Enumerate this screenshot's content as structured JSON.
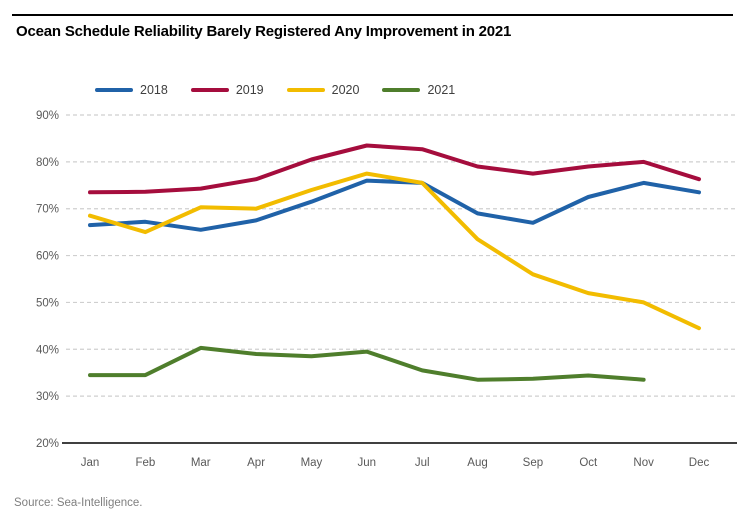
{
  "title": "Ocean Schedule Reliability Barely Registered Any Improvement in 2021",
  "source": "Source: Sea-Intelligence.",
  "chart_data": {
    "type": "line",
    "title": "Ocean Schedule Reliability Barely Registered Any Improvement in 2021",
    "categories": [
      "Jan",
      "Feb",
      "Mar",
      "Apr",
      "May",
      "Jun",
      "Jul",
      "Aug",
      "Sep",
      "Oct",
      "Nov",
      "Dec"
    ],
    "series": [
      {
        "name": "2018",
        "color": "#2062A8",
        "values": [
          66.5,
          67.2,
          65.5,
          67.5,
          71.5,
          76.0,
          75.5,
          69.0,
          67.0,
          72.5,
          75.5,
          73.5
        ]
      },
      {
        "name": "2019",
        "color": "#A50D3D",
        "values": [
          73.5,
          73.6,
          74.3,
          76.3,
          80.5,
          83.5,
          82.7,
          79.0,
          77.5,
          79.0,
          80.0,
          76.3
        ]
      },
      {
        "name": "2020",
        "color": "#F2BC00",
        "values": [
          68.5,
          65.0,
          70.3,
          70.0,
          74.0,
          77.5,
          75.5,
          63.5,
          56.0,
          52.0,
          50.0,
          44.5
        ]
      },
      {
        "name": "2021",
        "color": "#4F7E2C",
        "values": [
          34.5,
          34.5,
          40.3,
          39.0,
          38.5,
          39.5,
          35.5,
          33.5,
          33.7,
          34.4,
          33.5,
          null
        ]
      }
    ],
    "xlabel": "",
    "ylabel": "",
    "ylim": [
      20,
      90
    ],
    "y_ticks": [
      "90%",
      "80%",
      "70%",
      "60%",
      "50%",
      "40%",
      "30%",
      "20%"
    ],
    "y_tick_values": [
      90,
      80,
      70,
      60,
      50,
      40,
      30,
      20
    ],
    "grid": "horizontal-dashed",
    "grid_color": "#cfcfcf",
    "axis_label_color": "#595959",
    "legend_position": "top-left"
  }
}
